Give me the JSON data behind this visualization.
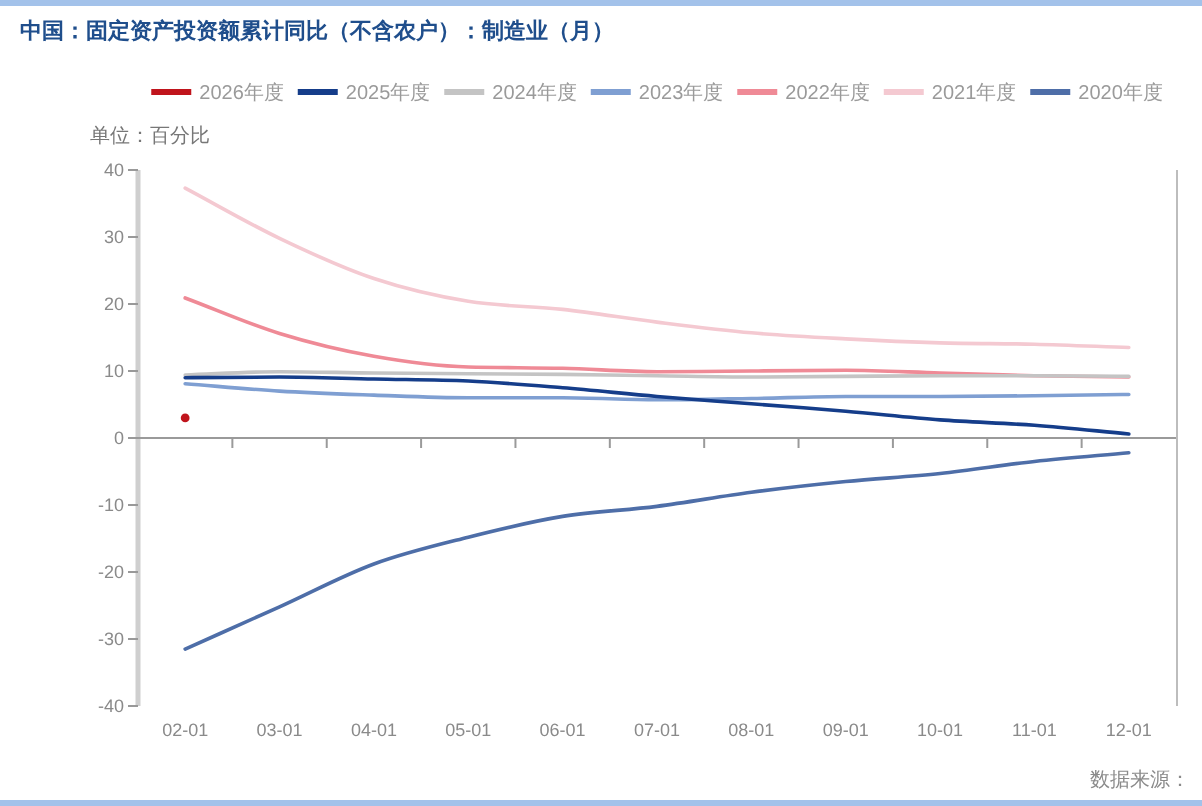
{
  "chart_data": {
    "type": "line",
    "title": "中国：固定资产投资额累计同比（不含农户）：制造业（月）",
    "ylabel": "单位：百分比",
    "categories": [
      "02-01",
      "03-01",
      "04-01",
      "05-01",
      "06-01",
      "07-01",
      "08-01",
      "09-01",
      "10-01",
      "11-01",
      "12-01"
    ],
    "series": [
      {
        "name": "2026年度",
        "color": "#c0141c",
        "marker": "circle",
        "values": [
          3,
          null,
          null,
          null,
          null,
          null,
          null,
          null,
          null,
          null,
          null
        ]
      },
      {
        "name": "2025年度",
        "color": "#153d8a",
        "values": [
          9.0,
          9.1,
          8.8,
          8.5,
          7.5,
          6.2,
          5.1,
          4.0,
          2.7,
          1.9,
          0.6
        ]
      },
      {
        "name": "2024年度",
        "color": "#c4c4c4",
        "values": [
          9.4,
          9.9,
          9.7,
          9.6,
          9.5,
          9.3,
          9.1,
          9.2,
          9.3,
          9.3,
          9.2
        ]
      },
      {
        "name": "2023年度",
        "color": "#7f9fd2",
        "values": [
          8.1,
          7.0,
          6.4,
          6.0,
          6.0,
          5.7,
          5.9,
          6.2,
          6.2,
          6.3,
          6.5
        ]
      },
      {
        "name": "2022年度",
        "color": "#ef8a96",
        "values": [
          20.9,
          15.6,
          12.2,
          10.6,
          10.4,
          9.9,
          10.0,
          10.1,
          9.7,
          9.3,
          9.1
        ]
      },
      {
        "name": "2021年度",
        "color": "#f4c9d1",
        "values": [
          37.3,
          29.8,
          23.8,
          20.4,
          19.2,
          17.3,
          15.7,
          14.8,
          14.2,
          14.0,
          13.5
        ]
      },
      {
        "name": "2020年度",
        "color": "#4e6ea8",
        "values": [
          -31.5,
          -25.2,
          -18.8,
          -14.8,
          -11.7,
          -10.2,
          -8.1,
          -6.5,
          -5.3,
          -3.5,
          -2.2
        ]
      }
    ],
    "ylim": [
      -40,
      40
    ],
    "yticks": [
      -40,
      -30,
      -20,
      -10,
      0,
      10,
      20,
      30,
      40
    ],
    "legend": "top",
    "marker": "none",
    "line_style": "solid",
    "annotations": [
      "数据来源："
    ]
  }
}
